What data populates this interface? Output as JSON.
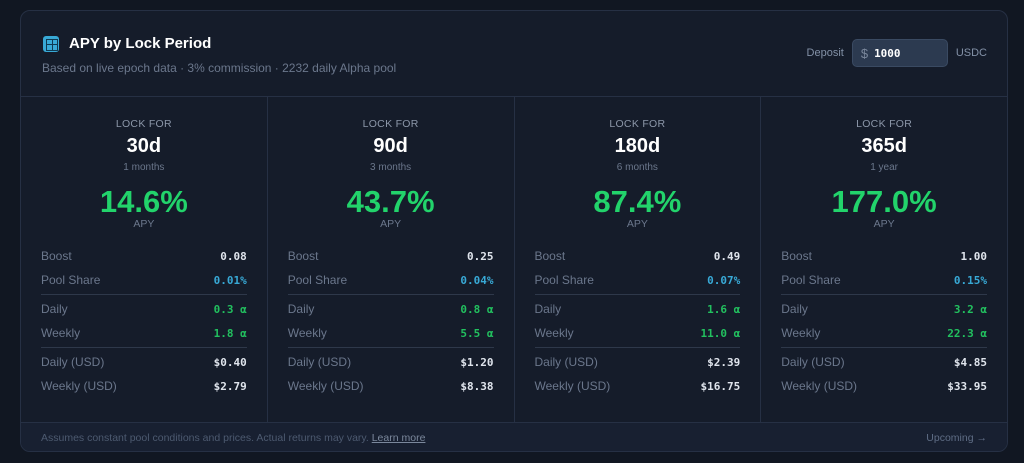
{
  "header": {
    "title": "APY by Lock Period",
    "subtitle": "Based on live epoch data · 3% commission · 2232 daily Alpha pool",
    "icon": "calculator-icon"
  },
  "deposit": {
    "label": "Deposit",
    "currency_symbol": "$",
    "value": "1000",
    "unit": "USDC"
  },
  "labels": {
    "lock_for": "LOCK FOR",
    "apy": "APY",
    "boost": "Boost",
    "pool_share": "Pool Share",
    "daily": "Daily",
    "weekly": "Weekly",
    "daily_usd": "Daily (USD)",
    "weekly_usd": "Weekly (USD)"
  },
  "columns": [
    {
      "days": "30d",
      "months": "1 months",
      "apy": "14.6%",
      "boost": "0.08",
      "pool_share": "0.01%",
      "daily": "0.3 α",
      "weekly": "1.8 α",
      "daily_usd": "$0.40",
      "weekly_usd": "$2.79"
    },
    {
      "days": "90d",
      "months": "3 months",
      "apy": "43.7%",
      "boost": "0.25",
      "pool_share": "0.04%",
      "daily": "0.8 α",
      "weekly": "5.5 α",
      "daily_usd": "$1.20",
      "weekly_usd": "$8.38"
    },
    {
      "days": "180d",
      "months": "6 months",
      "apy": "87.4%",
      "boost": "0.49",
      "pool_share": "0.07%",
      "daily": "1.6 α",
      "weekly": "11.0 α",
      "daily_usd": "$2.39",
      "weekly_usd": "$16.75"
    },
    {
      "days": "365d",
      "months": "1 year",
      "apy": "177.0%",
      "boost": "1.00",
      "pool_share": "0.15%",
      "daily": "3.2 α",
      "weekly": "22.3 α",
      "daily_usd": "$4.85",
      "weekly_usd": "$33.95"
    }
  ],
  "footer": {
    "note": "Assumes constant pool conditions and prices. Actual returns may vary.",
    "learn_more": "Learn more",
    "upcoming": "Upcoming →"
  },
  "colors": {
    "accent_green": "#22d36b",
    "accent_blue": "#38a9d6"
  }
}
